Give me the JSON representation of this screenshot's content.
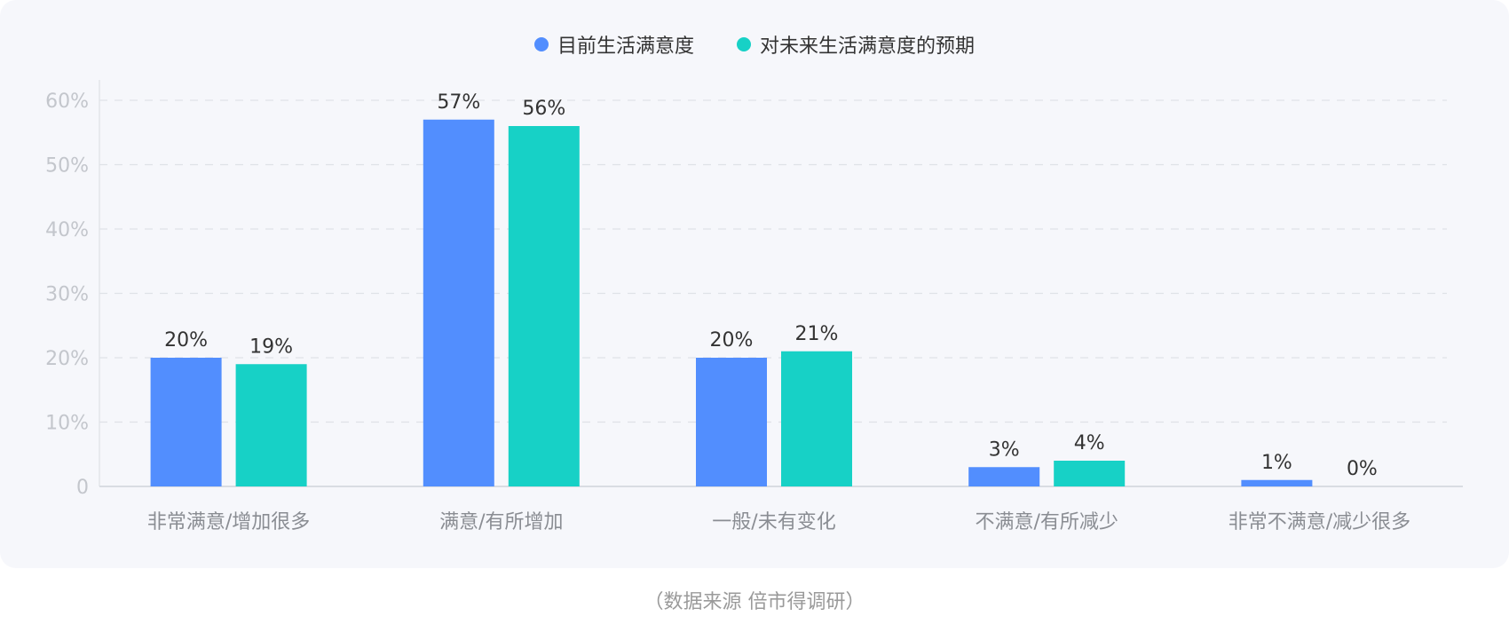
{
  "chart_data": {
    "type": "bar",
    "categories": [
      "非常满意/增加很多",
      "满意/有所增加",
      "一般/未有变化",
      "不满意/有所减少",
      "非常不满意/减少很多"
    ],
    "series": [
      {
        "name": "目前生活满意度",
        "values": [
          20,
          57,
          20,
          3,
          1
        ],
        "color": "#528efe"
      },
      {
        "name": "对未来生活满意度的预期",
        "values": [
          19,
          56,
          21,
          4,
          0
        ],
        "color": "#17d1c6"
      }
    ],
    "y_ticks": [
      "0",
      "10%",
      "20%",
      "30%",
      "40%",
      "50%",
      "60%"
    ],
    "ylim": [
      0,
      63
    ],
    "grid": true,
    "legend_position": "top-center",
    "value_suffix": "%"
  },
  "source_text": "（数据来源  倍市得调研）"
}
